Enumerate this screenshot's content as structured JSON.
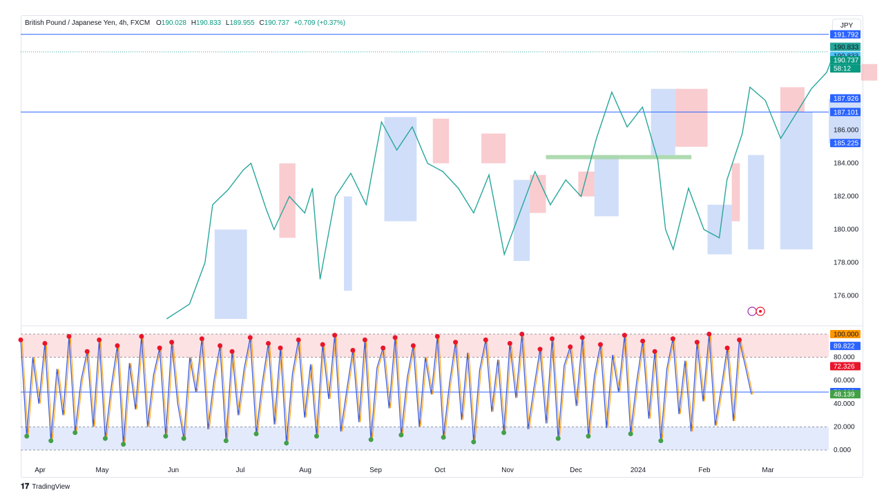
{
  "header": {
    "symbol": "British Pound / Japanese Yen, 4h, FXCM",
    "o_key": "O",
    "o_val": "190.028",
    "h_key": "H",
    "h_val": "190.833",
    "l_key": "L",
    "l_val": "189.955",
    "c_key": "C",
    "c_val": "190.737",
    "change": "+0.709 (+0.37%)",
    "currency": "JPY"
  },
  "footer": {
    "brand": "TradingView"
  },
  "colors": {
    "up": "#089981",
    "down": "#f23645",
    "price_line": "#2962ff",
    "blue_zone": "#bcd0f7",
    "red_zone": "#f7b7bc",
    "green_zone": "#a5d6a7",
    "osc_line": "#3c5bd6",
    "osc_signal": "#ff9800",
    "dot_top": "#e8162a",
    "dot_bottom": "#43a047"
  },
  "chart_data": [
    {
      "type": "line",
      "name": "price",
      "x": [
        "Apr",
        "May",
        "Jun",
        "Jul",
        "Aug",
        "Sep",
        "Oct",
        "Nov",
        "Dec",
        "2024",
        "Feb",
        "Mar"
      ],
      "y_ticks": [
        "176.000",
        "178.000",
        "180.000",
        "182.000",
        "184.000",
        "186.000"
      ],
      "ylim": [
        174.6,
        192.2
      ],
      "points": [
        [
          0.08,
          null
        ],
        [
          0.19,
          174.6
        ],
        [
          0.22,
          175.5
        ],
        [
          0.24,
          178.0
        ],
        [
          0.25,
          181.5
        ],
        [
          0.27,
          182.4
        ],
        [
          0.29,
          183.6
        ],
        [
          0.3,
          184.0
        ],
        [
          0.32,
          181.2
        ],
        [
          0.33,
          180.0
        ],
        [
          0.35,
          182.0
        ],
        [
          0.37,
          181.0
        ],
        [
          0.38,
          182.5
        ],
        [
          0.39,
          177.0
        ],
        [
          0.41,
          182.0
        ],
        [
          0.43,
          183.4
        ],
        [
          0.45,
          181.5
        ],
        [
          0.47,
          186.5
        ],
        [
          0.49,
          184.8
        ],
        [
          0.51,
          186.2
        ],
        [
          0.53,
          184.0
        ],
        [
          0.55,
          183.5
        ],
        [
          0.57,
          182.5
        ],
        [
          0.59,
          181.0
        ],
        [
          0.61,
          183.3
        ],
        [
          0.63,
          178.5
        ],
        [
          0.65,
          181.0
        ],
        [
          0.67,
          183.5
        ],
        [
          0.69,
          181.5
        ],
        [
          0.71,
          183.0
        ],
        [
          0.73,
          182.0
        ],
        [
          0.75,
          185.5
        ],
        [
          0.77,
          188.3
        ],
        [
          0.79,
          186.2
        ],
        [
          0.81,
          187.4
        ],
        [
          0.83,
          184.2
        ],
        [
          0.84,
          180.0
        ],
        [
          0.85,
          178.8
        ],
        [
          0.87,
          182.5
        ],
        [
          0.89,
          180.0
        ],
        [
          0.91,
          179.5
        ],
        [
          0.92,
          183.0
        ],
        [
          0.94,
          185.8
        ],
        [
          0.95,
          188.6
        ],
        [
          0.97,
          187.8
        ],
        [
          0.99,
          185.5
        ],
        [
          1.01,
          187.0
        ],
        [
          1.03,
          188.5
        ],
        [
          1.05,
          189.5
        ],
        [
          1.06,
          190.737
        ]
      ],
      "levels": {
        "top_line": "191.792",
        "high": "190.833",
        "high_marker": "190.833",
        "last": "190.737",
        "countdown": "58:12",
        "r1": "187.926",
        "r2": "187.101",
        "s1": "185.225"
      }
    },
    {
      "type": "line",
      "name": "oscillator",
      "y_ticks": [
        "0.000",
        "20.000",
        "40.000",
        "60.000",
        "80.000",
        "100.000"
      ],
      "ylim": [
        0,
        100
      ],
      "overbought": 80,
      "oversold": 20,
      "mid": 50,
      "labels": {
        "top": "100.000",
        "osc": "89.822",
        "k": "72.326",
        "mid": "50.000",
        "d": "48.139"
      },
      "values": [
        95,
        12,
        80,
        40,
        92,
        8,
        70,
        30,
        98,
        15,
        60,
        85,
        20,
        95,
        10,
        55,
        90,
        5,
        75,
        35,
        98,
        20,
        65,
        88,
        12,
        93,
        40,
        10,
        80,
        50,
        96,
        18,
        60,
        90,
        8,
        85,
        30,
        70,
        97,
        14,
        58,
        92,
        22,
        88,
        6,
        66,
        95,
        28,
        74,
        12,
        91,
        44,
        99,
        16,
        52,
        86,
        24,
        95,
        9,
        71,
        88,
        36,
        97,
        13,
        62,
        90,
        20,
        80,
        48,
        98,
        11,
        57,
        93,
        26,
        84,
        7,
        69,
        95,
        33,
        78,
        15,
        92,
        45,
        100,
        18,
        54,
        87,
        23,
        96,
        10,
        73,
        89,
        38,
        97,
        12,
        64,
        91,
        19,
        82,
        50,
        99,
        14,
        59,
        94,
        27,
        85,
        8,
        70,
        96,
        31,
        77,
        16,
        93,
        42,
        100,
        21,
        53,
        88,
        25,
        95,
        72,
        48
      ]
    }
  ]
}
